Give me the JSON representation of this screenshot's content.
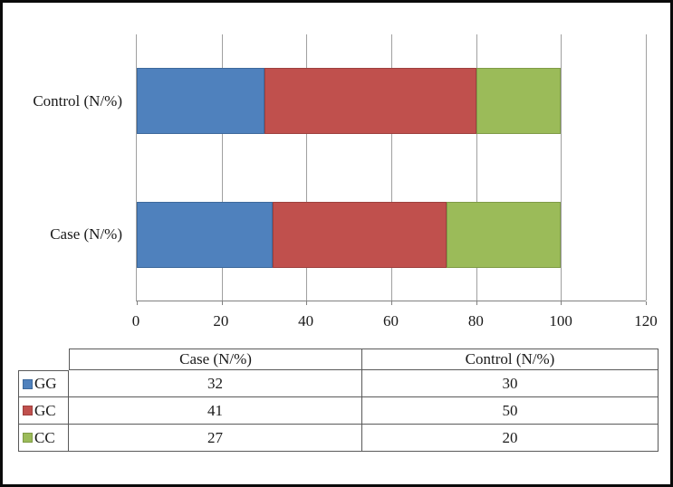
{
  "figure": {
    "background": "#ffffff",
    "frame_color": "#0a0a0a"
  },
  "chart_data": {
    "type": "bar",
    "orientation": "horizontal",
    "stacked": true,
    "title": "",
    "xlabel": "",
    "ylabel": "",
    "xlim": [
      0,
      120
    ],
    "xticks": [
      "0",
      "20",
      "40",
      "60",
      "80",
      "100",
      "120"
    ],
    "grid": true,
    "legend_position": "table-below",
    "categories": [
      "Control (N/%)",
      "Case (N/%)"
    ],
    "series": [
      {
        "name": "GG",
        "color": "#4f81bd",
        "border_color": "#3d699c",
        "values": [
          30,
          32
        ]
      },
      {
        "name": "GC",
        "color": "#c0504d",
        "border_color": "#9e403e",
        "values": [
          50,
          41
        ]
      },
      {
        "name": "CC",
        "color": "#9bbb59",
        "border_color": "#7f9b47",
        "values": [
          20,
          27
        ]
      }
    ]
  },
  "table": {
    "corner_label": "",
    "columns": [
      "Case (N/%)",
      "Control (N/%)"
    ],
    "rows": [
      {
        "label": "GG",
        "swatch_color": "#4f81bd",
        "swatch_border": "#3d699c",
        "values": [
          "32",
          "30"
        ]
      },
      {
        "label": "GC",
        "swatch_color": "#c0504d",
        "swatch_border": "#9e403e",
        "values": [
          "41",
          "50"
        ]
      },
      {
        "label": "CC",
        "swatch_color": "#9bbb59",
        "swatch_border": "#7f9b47",
        "values": [
          "27",
          "20"
        ]
      }
    ]
  },
  "style": {
    "gridline_color": "#a0a0a0",
    "axis_color": "#808080",
    "table_border_color": "#595959",
    "text_color": "#1a1a1a"
  }
}
